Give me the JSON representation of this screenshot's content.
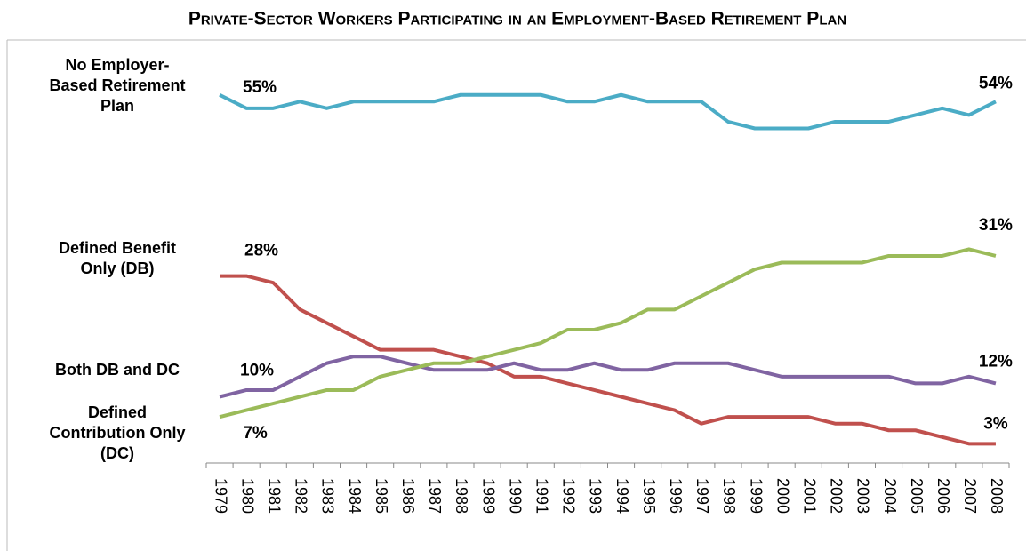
{
  "chart_data": {
    "type": "line",
    "title": "Private-Sector Workers Participating in an Employment-Based Retirement Plan",
    "categories": [
      "1979",
      "1980",
      "1981",
      "1982",
      "1983",
      "1984",
      "1985",
      "1986",
      "1987",
      "1988",
      "1989",
      "1990",
      "1991",
      "1992",
      "1993",
      "1994",
      "1995",
      "1996",
      "1997",
      "1998",
      "1999",
      "2000",
      "2001",
      "2002",
      "2003",
      "2004",
      "2005",
      "2006",
      "2007",
      "2008"
    ],
    "ylim": [
      0,
      60
    ],
    "series": [
      {
        "name": "No Employer-Based Retirement Plan",
        "color": "#4bacc6",
        "values": [
          55,
          53,
          53,
          54,
          53,
          54,
          54,
          54,
          54,
          55,
          55,
          55,
          55,
          54,
          54,
          55,
          54,
          54,
          54,
          51,
          50,
          50,
          50,
          51,
          51,
          51,
          52,
          53,
          52,
          54
        ],
        "value_labels": [
          "55%",
          null,
          null,
          null,
          null,
          null,
          null,
          null,
          null,
          null,
          null,
          null,
          null,
          null,
          null,
          null,
          null,
          null,
          null,
          null,
          null,
          null,
          null,
          null,
          null,
          null,
          null,
          null,
          null,
          "54%"
        ]
      },
      {
        "name": "Defined Benefit Only (DB)",
        "color": "#c0504d",
        "values": [
          28,
          28,
          27,
          23,
          21,
          19,
          17,
          17,
          17,
          16,
          15,
          13,
          13,
          12,
          11,
          10,
          9,
          8,
          6,
          7,
          7,
          7,
          7,
          6,
          6,
          5,
          5,
          4,
          3,
          3
        ],
        "value_labels": [
          "28%",
          null,
          null,
          null,
          null,
          null,
          null,
          null,
          null,
          null,
          null,
          null,
          null,
          null,
          null,
          null,
          null,
          null,
          null,
          null,
          null,
          null,
          null,
          null,
          null,
          null,
          null,
          null,
          null,
          "3%"
        ]
      },
      {
        "name": "Both DB and DC",
        "color": "#8064a2",
        "values": [
          10,
          11,
          11,
          13,
          15,
          16,
          16,
          15,
          14,
          14,
          14,
          15,
          14,
          14,
          15,
          14,
          14,
          15,
          15,
          15,
          14,
          13,
          13,
          13,
          13,
          13,
          12,
          12,
          13,
          12
        ],
        "value_labels": [
          "10%",
          null,
          null,
          null,
          null,
          null,
          null,
          null,
          null,
          null,
          null,
          null,
          null,
          null,
          null,
          null,
          null,
          null,
          null,
          null,
          null,
          null,
          null,
          null,
          null,
          null,
          null,
          null,
          null,
          "12%"
        ]
      },
      {
        "name": "Defined Contribution Only (DC)",
        "color": "#9bbb59",
        "values": [
          7,
          8,
          9,
          10,
          11,
          11,
          13,
          14,
          15,
          15,
          16,
          17,
          18,
          20,
          20,
          21,
          23,
          23,
          25,
          27,
          29,
          30,
          30,
          30,
          30,
          31,
          31,
          31,
          32,
          31
        ],
        "value_labels": [
          "7%",
          null,
          null,
          null,
          null,
          null,
          null,
          null,
          null,
          null,
          null,
          null,
          null,
          null,
          null,
          null,
          null,
          null,
          null,
          null,
          null,
          null,
          null,
          null,
          null,
          null,
          null,
          null,
          null,
          "31%"
        ]
      }
    ]
  }
}
